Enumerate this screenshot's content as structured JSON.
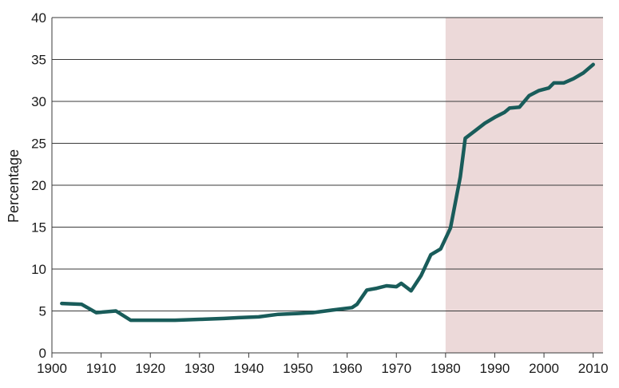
{
  "chart_data": {
    "type": "line",
    "title": "",
    "xlabel": "",
    "ylabel": "Percentage",
    "xlim": [
      1900,
      2012
    ],
    "ylim": [
      0,
      40
    ],
    "x_ticks": [
      1900,
      1910,
      1920,
      1930,
      1940,
      1950,
      1960,
      1970,
      1980,
      1990,
      2000,
      2010
    ],
    "y_ticks": [
      0,
      5,
      10,
      15,
      20,
      25,
      30,
      35,
      40
    ],
    "grid": "horizontal",
    "shaded_region": {
      "x_start": 1980,
      "x_end": 2012,
      "color": "#ecd9d9"
    },
    "series": [
      {
        "color": "#195c5a",
        "points": [
          [
            1902,
            5.9
          ],
          [
            1906,
            5.8
          ],
          [
            1909,
            4.8
          ],
          [
            1913,
            5.0
          ],
          [
            1916,
            3.9
          ],
          [
            1920,
            3.9
          ],
          [
            1925,
            3.9
          ],
          [
            1930,
            4.0
          ],
          [
            1935,
            4.1
          ],
          [
            1938,
            4.2
          ],
          [
            1942,
            4.3
          ],
          [
            1946,
            4.6
          ],
          [
            1950,
            4.7
          ],
          [
            1953,
            4.8
          ],
          [
            1957,
            5.1
          ],
          [
            1961,
            5.4
          ],
          [
            1962,
            5.8
          ],
          [
            1964,
            7.5
          ],
          [
            1966,
            7.7
          ],
          [
            1968,
            8.0
          ],
          [
            1970,
            7.9
          ],
          [
            1971,
            8.3
          ],
          [
            1973,
            7.4
          ],
          [
            1975,
            9.2
          ],
          [
            1977,
            11.7
          ],
          [
            1979,
            12.4
          ],
          [
            1981,
            14.9
          ],
          [
            1983,
            21.0
          ],
          [
            1984,
            25.6
          ],
          [
            1986,
            26.5
          ],
          [
            1988,
            27.4
          ],
          [
            1990,
            28.1
          ],
          [
            1992,
            28.7
          ],
          [
            1993,
            29.2
          ],
          [
            1995,
            29.3
          ],
          [
            1997,
            30.7
          ],
          [
            1999,
            31.3
          ],
          [
            2001,
            31.6
          ],
          [
            2002,
            32.2
          ],
          [
            2004,
            32.2
          ],
          [
            2006,
            32.7
          ],
          [
            2008,
            33.4
          ],
          [
            2010,
            34.4
          ]
        ]
      }
    ]
  }
}
